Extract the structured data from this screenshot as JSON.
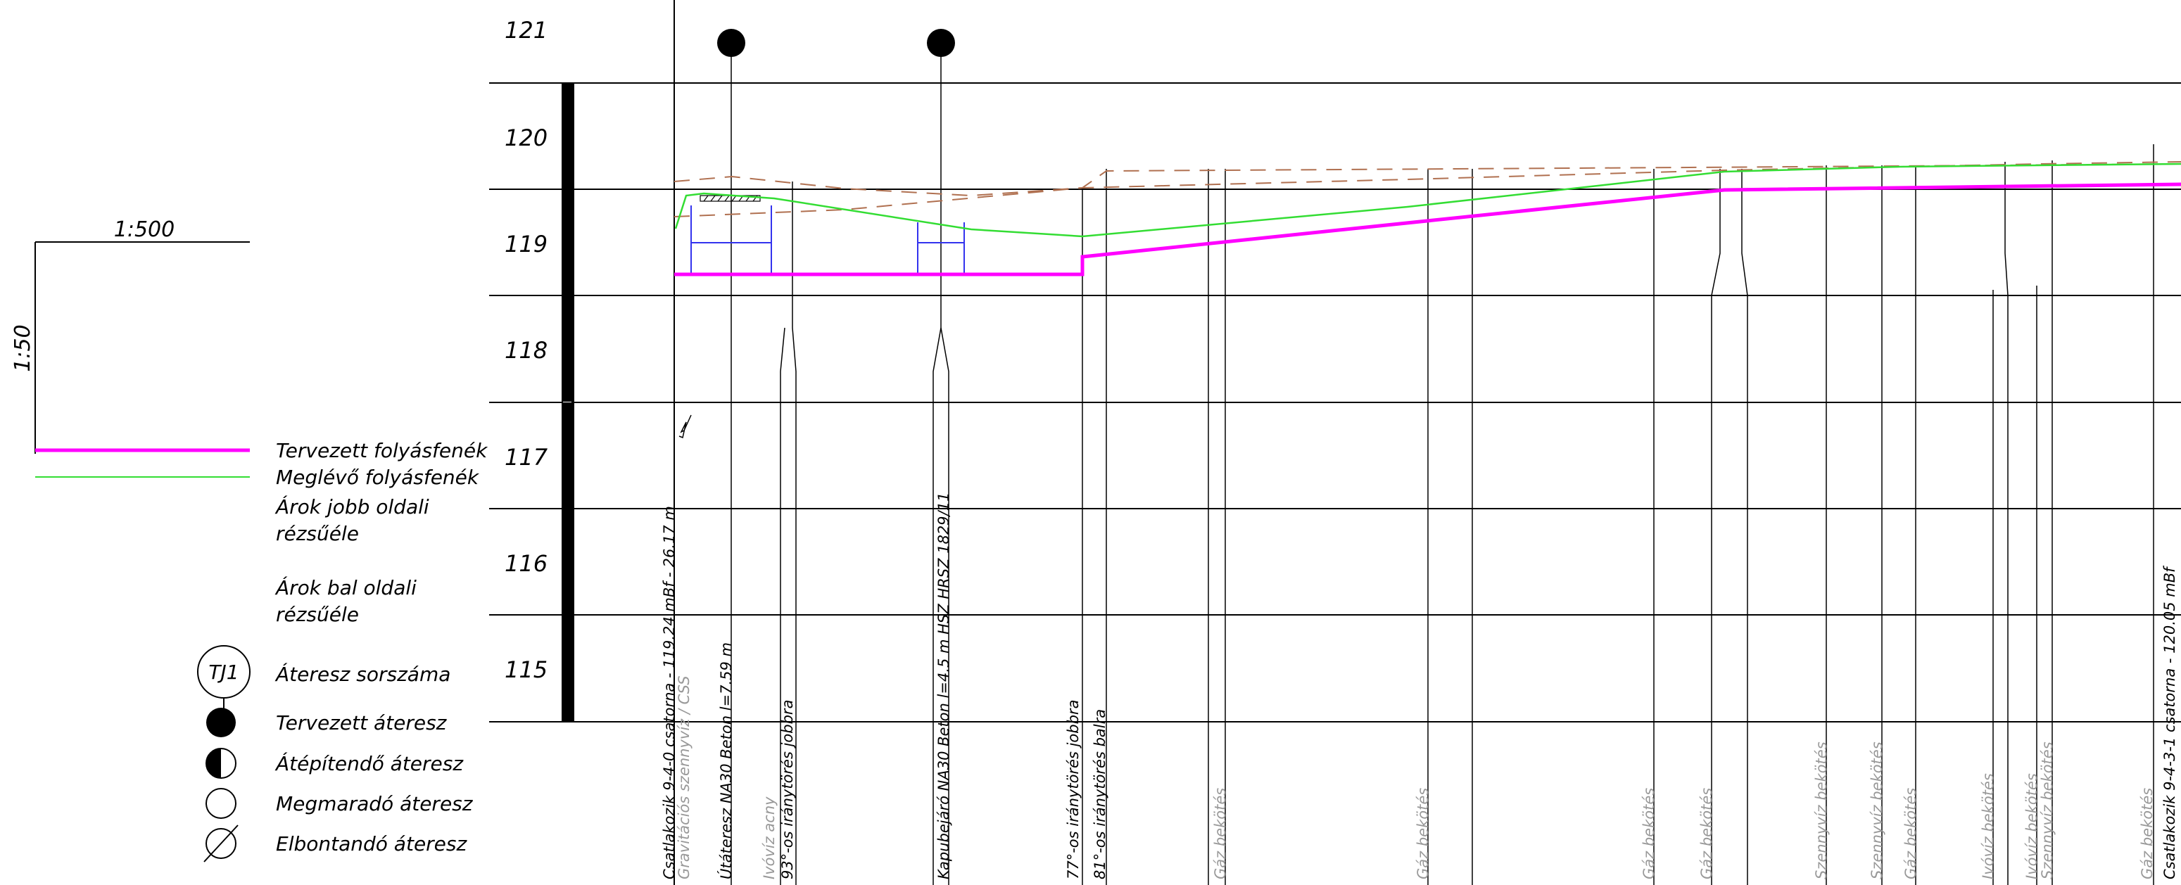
{
  "scales": {
    "horizontal": "1:500",
    "vertical": "1:50"
  },
  "legend": [
    {
      "key": "designed",
      "label_lines": [
        "Tervezett folyásfenék"
      ],
      "color": "#ff00ff",
      "symbol": "thick-line"
    },
    {
      "key": "existing",
      "label_lines": [
        "Meglévő folyásfenék"
      ],
      "color": "#33dd33",
      "symbol": "thin-line"
    },
    {
      "key": "right_edge",
      "label_lines": [
        "Árok jobb oldali",
        "rézsűéle"
      ],
      "symbol": "none"
    },
    {
      "key": "left_edge",
      "label_lines": [
        "Árok bal oldali",
        "rézsűéle"
      ],
      "symbol": "none"
    },
    {
      "key": "culvert_no",
      "label_lines": [
        "Áteresz sorszáma"
      ],
      "symbol": "circle-label",
      "symbol_text": "TJ1"
    },
    {
      "key": "planned",
      "label_lines": [
        "Tervezett áteresz"
      ],
      "symbol": "filled-circle"
    },
    {
      "key": "rebuild",
      "label_lines": [
        "Átépítendő áteresz"
      ],
      "symbol": "half-circle"
    },
    {
      "key": "remaining",
      "label_lines": [
        "Megmaradó áteresz"
      ],
      "symbol": "open-circle"
    },
    {
      "key": "demolish",
      "label_lines": [
        "Elbontandó áteresz"
      ],
      "symbol": "slashed-circle"
    }
  ],
  "elevation_labels": [
    "121",
    "120",
    "119",
    "118",
    "117",
    "116",
    "115"
  ],
  "station_labels": [
    {
      "text": "Csatlakozik 9-4-0 csatorna - 119.24 mBf - 26.17 m",
      "color": "#000000"
    },
    {
      "text": "Gravitációs szennyvíz / CSS",
      "color": "#999999"
    },
    {
      "text": "Útáteresz NA30 Beton l=7.59 m",
      "color": "#000000"
    },
    {
      "text": "Ivóvíz acny",
      "color": "#999999"
    },
    {
      "text": "93°-os iránytörés jobbra",
      "color": "#000000"
    },
    {
      "text": "Kapubejáró NA30 Beton l=4.5 m HSZ HRSZ 1829/11",
      "color": "#000000"
    },
    {
      "text": "77°-os iránytörés jobbra",
      "color": "#000000"
    },
    {
      "text": "81°-os iránytörés balra",
      "color": "#000000"
    },
    {
      "text": "Gáz bekötés",
      "color": "#999999"
    },
    {
      "text": "Gáz bekötés",
      "color": "#999999"
    },
    {
      "text": "Gáz bekötés",
      "color": "#999999"
    },
    {
      "text": "Gáz bekötés",
      "color": "#999999"
    },
    {
      "text": "Szennyvíz bekötés",
      "color": "#999999"
    },
    {
      "text": "Szennyvíz bekötés",
      "color": "#999999"
    },
    {
      "text": "Gáz bekötés",
      "color": "#999999"
    },
    {
      "text": "Ivóvíz bekötés",
      "color": "#999999"
    },
    {
      "text": "Ivóvíz bekötés",
      "color": "#999999"
    },
    {
      "text": "Szennyvíz bekötés",
      "color": "#999999"
    },
    {
      "text": "Gáz bekötés",
      "color": "#999999"
    },
    {
      "text": "Csatlakozik 9-4-3-1 csatorna - 120.05 mBf",
      "color": "#000000"
    }
  ],
  "colors": {
    "designed": "#ff00ff",
    "existing": "#33dd33",
    "edge": "#b07050",
    "culvert": "#3333ee"
  }
}
